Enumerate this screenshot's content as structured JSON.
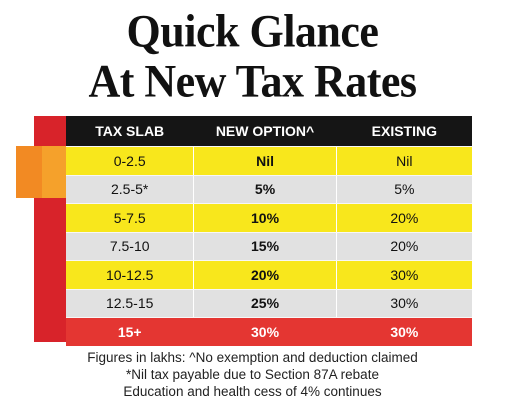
{
  "title": {
    "line1": "Quick Glance",
    "line2": "At New Tax Rates"
  },
  "table": {
    "headers": [
      "TAX SLAB",
      "NEW OPTION^",
      "EXISTING"
    ],
    "rows": [
      {
        "slab": "0-2.5",
        "new": "Nil",
        "existing": "Nil"
      },
      {
        "slab": "2.5-5*",
        "new": "5%",
        "existing": "5%"
      },
      {
        "slab": "5-7.5",
        "new": "10%",
        "existing": "20%"
      },
      {
        "slab": "7.5-10",
        "new": "15%",
        "existing": "20%"
      },
      {
        "slab": "10-12.5",
        "new": "20%",
        "existing": "30%"
      },
      {
        "slab": "12.5-15",
        "new": "25%",
        "existing": "30%"
      },
      {
        "slab": "15+",
        "new": "30%",
        "existing": "30%"
      }
    ]
  },
  "notes": {
    "line1": "Figures in lakhs: ^No exemption and deduction claimed",
    "line2": "*Nil tax payable due to Section 87A rebate",
    "line3": "Education and health cess of 4% continues"
  },
  "colors": {
    "header": "#151515",
    "yellow_row": "#f8e71c",
    "grey_row": "#e1e1e1",
    "highlight_row": "#e43632",
    "accent_stripe": "#d8232a",
    "accent_orange": "#f5a12b"
  }
}
